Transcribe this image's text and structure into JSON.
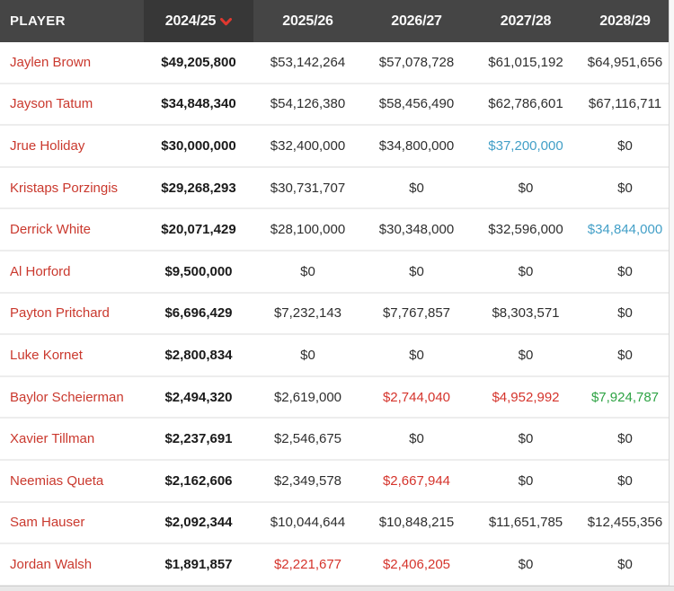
{
  "colors": {
    "header_bg": "#454545",
    "header_sorted_bg": "#373737",
    "header_text": "#fafafa",
    "sort_caret": "#e0382f",
    "player_name": "#ca392e",
    "value_bold": "#1a1a1a",
    "value_normal": "#2e2e2e",
    "value_blue": "#429fc7",
    "value_red": "#d5342c",
    "value_green": "#2ea344",
    "row_separator": "#ededed"
  },
  "table": {
    "columns": [
      "PLAYER",
      "2024/25",
      "2025/26",
      "2026/27",
      "2027/28",
      "2028/29"
    ],
    "sorted_column": "2024/25",
    "sort_direction": "desc",
    "rows": [
      {
        "player": "Jaylen Brown",
        "values": [
          {
            "text": "$49,205,800",
            "style": "bold"
          },
          {
            "text": "$53,142,264",
            "style": "normal"
          },
          {
            "text": "$57,078,728",
            "style": "normal"
          },
          {
            "text": "$61,015,192",
            "style": "normal"
          },
          {
            "text": "$64,951,656",
            "style": "normal"
          }
        ]
      },
      {
        "player": "Jayson Tatum",
        "values": [
          {
            "text": "$34,848,340",
            "style": "bold"
          },
          {
            "text": "$54,126,380",
            "style": "normal"
          },
          {
            "text": "$58,456,490",
            "style": "normal"
          },
          {
            "text": "$62,786,601",
            "style": "normal"
          },
          {
            "text": "$67,116,711",
            "style": "normal"
          }
        ]
      },
      {
        "player": "Jrue Holiday",
        "values": [
          {
            "text": "$30,000,000",
            "style": "bold"
          },
          {
            "text": "$32,400,000",
            "style": "normal"
          },
          {
            "text": "$34,800,000",
            "style": "normal"
          },
          {
            "text": "$37,200,000",
            "style": "blue"
          },
          {
            "text": "$0",
            "style": "normal"
          }
        ]
      },
      {
        "player": "Kristaps Porzingis",
        "values": [
          {
            "text": "$29,268,293",
            "style": "bold"
          },
          {
            "text": "$30,731,707",
            "style": "normal"
          },
          {
            "text": "$0",
            "style": "normal"
          },
          {
            "text": "$0",
            "style": "normal"
          },
          {
            "text": "$0",
            "style": "normal"
          }
        ]
      },
      {
        "player": "Derrick White",
        "values": [
          {
            "text": "$20,071,429",
            "style": "bold"
          },
          {
            "text": "$28,100,000",
            "style": "normal"
          },
          {
            "text": "$30,348,000",
            "style": "normal"
          },
          {
            "text": "$32,596,000",
            "style": "normal"
          },
          {
            "text": "$34,844,000",
            "style": "blue"
          }
        ]
      },
      {
        "player": "Al Horford",
        "values": [
          {
            "text": "$9,500,000",
            "style": "bold"
          },
          {
            "text": "$0",
            "style": "normal"
          },
          {
            "text": "$0",
            "style": "normal"
          },
          {
            "text": "$0",
            "style": "normal"
          },
          {
            "text": "$0",
            "style": "normal"
          }
        ]
      },
      {
        "player": "Payton Pritchard",
        "values": [
          {
            "text": "$6,696,429",
            "style": "bold"
          },
          {
            "text": "$7,232,143",
            "style": "normal"
          },
          {
            "text": "$7,767,857",
            "style": "normal"
          },
          {
            "text": "$8,303,571",
            "style": "normal"
          },
          {
            "text": "$0",
            "style": "normal"
          }
        ]
      },
      {
        "player": "Luke Kornet",
        "values": [
          {
            "text": "$2,800,834",
            "style": "bold"
          },
          {
            "text": "$0",
            "style": "normal"
          },
          {
            "text": "$0",
            "style": "normal"
          },
          {
            "text": "$0",
            "style": "normal"
          },
          {
            "text": "$0",
            "style": "normal"
          }
        ]
      },
      {
        "player": "Baylor Scheierman",
        "values": [
          {
            "text": "$2,494,320",
            "style": "bold"
          },
          {
            "text": "$2,619,000",
            "style": "normal"
          },
          {
            "text": "$2,744,040",
            "style": "red"
          },
          {
            "text": "$4,952,992",
            "style": "red"
          },
          {
            "text": "$7,924,787",
            "style": "green"
          }
        ]
      },
      {
        "player": "Xavier Tillman",
        "values": [
          {
            "text": "$2,237,691",
            "style": "bold"
          },
          {
            "text": "$2,546,675",
            "style": "normal"
          },
          {
            "text": "$0",
            "style": "normal"
          },
          {
            "text": "$0",
            "style": "normal"
          },
          {
            "text": "$0",
            "style": "normal"
          }
        ]
      },
      {
        "player": "Neemias Queta",
        "values": [
          {
            "text": "$2,162,606",
            "style": "bold"
          },
          {
            "text": "$2,349,578",
            "style": "normal"
          },
          {
            "text": "$2,667,944",
            "style": "red"
          },
          {
            "text": "$0",
            "style": "normal"
          },
          {
            "text": "$0",
            "style": "normal"
          }
        ]
      },
      {
        "player": "Sam Hauser",
        "values": [
          {
            "text": "$2,092,344",
            "style": "bold"
          },
          {
            "text": "$10,044,644",
            "style": "normal"
          },
          {
            "text": "$10,848,215",
            "style": "normal"
          },
          {
            "text": "$11,651,785",
            "style": "normal"
          },
          {
            "text": "$12,455,356",
            "style": "normal"
          }
        ]
      },
      {
        "player": "Jordan Walsh",
        "values": [
          {
            "text": "$1,891,857",
            "style": "bold"
          },
          {
            "text": "$2,221,677",
            "style": "red"
          },
          {
            "text": "$2,406,205",
            "style": "red"
          },
          {
            "text": "$0",
            "style": "normal"
          },
          {
            "text": "$0",
            "style": "normal"
          }
        ]
      }
    ]
  }
}
